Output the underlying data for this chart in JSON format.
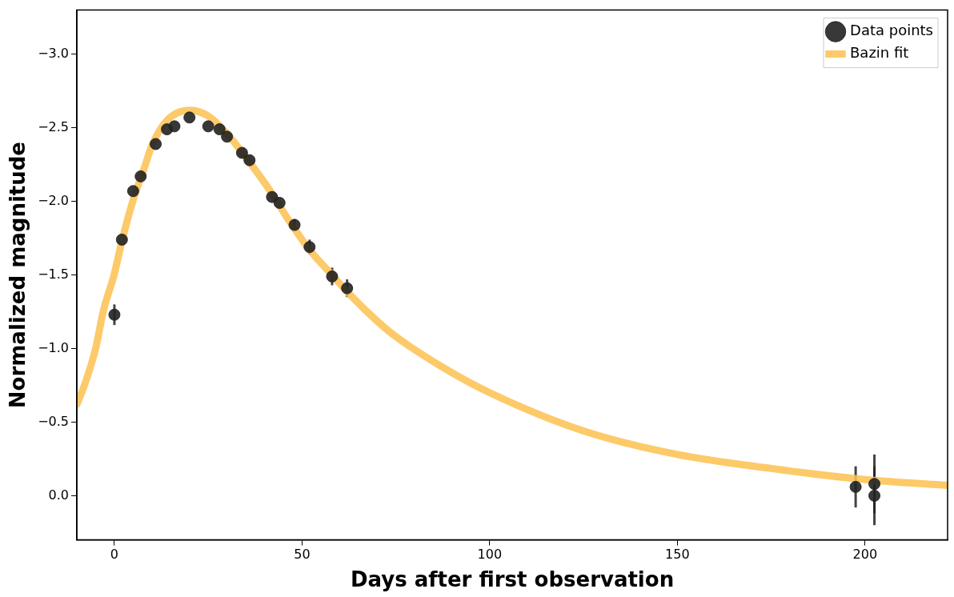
{
  "chart_data": {
    "type": "scatter",
    "xlabel": "Days after first observation",
    "ylabel": "Normalized magnitude",
    "xlim": [
      -10,
      222
    ],
    "ylim": [
      0.3,
      -3.3
    ],
    "xticks": [
      0,
      50,
      100,
      150,
      200
    ],
    "yticks": [
      {
        "value": -3,
        "label": "−3.0"
      },
      {
        "value": -2.5,
        "label": "−2.5"
      },
      {
        "value": -2,
        "label": "−2.0"
      },
      {
        "value": -1.5,
        "label": "−1.5"
      },
      {
        "value": -1,
        "label": "−1.0"
      },
      {
        "value": -0.5,
        "label": "−0.5"
      },
      {
        "value": 0,
        "label": "0.0"
      }
    ],
    "grid": false,
    "legend": "top right",
    "series": [
      {
        "name": "Bazin fit",
        "type": "line",
        "color": "#fdc150",
        "marker": "none",
        "line_style": "solid",
        "x": [
          -10,
          -8,
          -5,
          -3,
          0,
          2,
          5,
          8,
          10,
          14,
          20,
          25,
          30,
          35,
          41,
          46,
          52,
          58,
          63,
          69,
          74,
          87,
          100,
          125,
          150,
          175,
          200,
          222
        ],
        "values": [
          -0.62,
          -0.75,
          -1.0,
          -1.25,
          -1.51,
          -1.73,
          -2.01,
          -2.23,
          -2.38,
          -2.55,
          -2.62,
          -2.58,
          -2.46,
          -2.3,
          -2.09,
          -1.89,
          -1.67,
          -1.5,
          -1.36,
          -1.21,
          -1.1,
          -0.88,
          -0.7,
          -0.44,
          -0.28,
          -0.185,
          -0.11,
          -0.07
        ]
      },
      {
        "name": "Data points",
        "type": "scatter",
        "color": "#222222",
        "marker": "circle",
        "x": [
          0,
          2,
          5,
          7,
          11,
          14,
          16,
          20,
          25,
          28,
          30,
          34,
          36,
          42,
          44,
          48,
          52,
          58,
          62,
          197.5,
          202.5,
          202.5
        ],
        "values": [
          -1.23,
          -1.74,
          -2.07,
          -2.17,
          -2.39,
          -2.49,
          -2.51,
          -2.57,
          -2.51,
          -2.49,
          -2.44,
          -2.33,
          -2.28,
          -2.03,
          -1.99,
          -1.84,
          -1.69,
          -1.49,
          -1.41,
          -0.06,
          -0.08,
          0.0
        ],
        "errors": [
          0.07,
          null,
          null,
          null,
          null,
          null,
          null,
          null,
          null,
          null,
          null,
          null,
          null,
          null,
          null,
          0.04,
          0.05,
          0.06,
          0.06,
          0.14,
          0.2,
          0.2
        ]
      }
    ]
  }
}
